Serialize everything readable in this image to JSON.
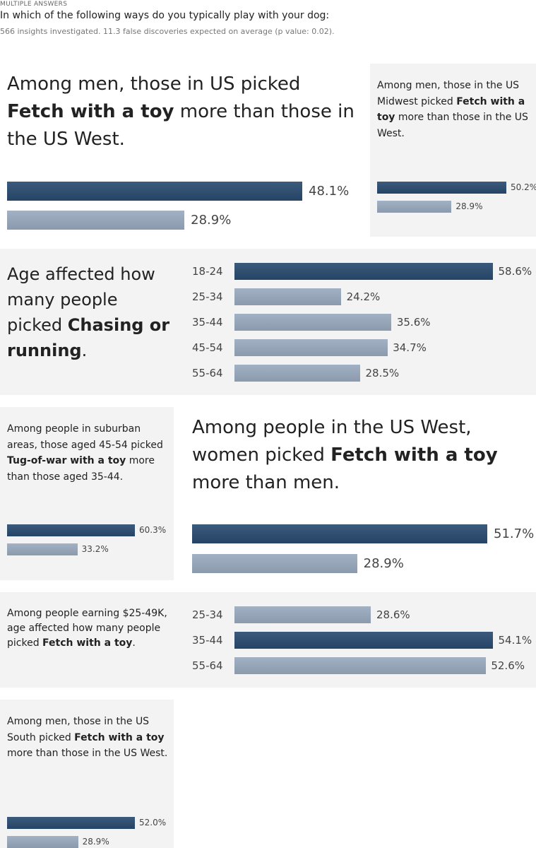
{
  "header": {
    "label": "MULTIPLE ANSWERS",
    "question": "In which of the following ways do you typically play with your dog:",
    "note": "566 insights investigated. 11.3 false discoveries expected on average (p value: 0.02)."
  },
  "chart_data": [
    {
      "type": "bar",
      "title": [
        {
          "text": "Among men, those in US picked ",
          "bold": false
        },
        {
          "text": "Fetch with a toy",
          "bold": true
        },
        {
          "text": " more than those in the US West.",
          "bold": false
        }
      ],
      "values": [
        48.1,
        28.9
      ],
      "value_labels": [
        "48.1%",
        "28.9%"
      ],
      "colors": [
        "#2a4c71",
        "#9aabbf"
      ]
    },
    {
      "type": "bar",
      "title": [
        {
          "text": "Among men, those in the US Midwest picked ",
          "bold": false
        },
        {
          "text": "Fetch with a toy",
          "bold": true
        },
        {
          "text": " more than those in the US West.",
          "bold": false
        }
      ],
      "values": [
        50.2,
        28.9
      ],
      "value_labels": [
        "50.2%",
        "28.9%"
      ],
      "colors": [
        "#2a4c71",
        "#9aabbf"
      ]
    },
    {
      "type": "bar",
      "title": [
        {
          "text": "Age affected how many people picked ",
          "bold": false
        },
        {
          "text": "Chasing or running",
          "bold": true
        },
        {
          "text": ".",
          "bold": false
        }
      ],
      "categories": [
        "18-24",
        "25-34",
        "35-44",
        "45-54",
        "55-64"
      ],
      "values": [
        58.6,
        24.2,
        35.6,
        34.7,
        28.5
      ],
      "value_labels": [
        "58.6%",
        "24.2%",
        "35.6%",
        "34.7%",
        "28.5%"
      ],
      "colors": [
        "#2a4c71",
        "#9aabbf",
        "#9aabbf",
        "#9aabbf",
        "#9aabbf"
      ]
    },
    {
      "type": "bar",
      "title": [
        {
          "text": "Among people in suburban areas, those aged 45-54 picked ",
          "bold": false
        },
        {
          "text": "Tug-of-war with a toy",
          "bold": true
        },
        {
          "text": " more than those aged 35-44.",
          "bold": false
        }
      ],
      "values": [
        60.3,
        33.2
      ],
      "value_labels": [
        "60.3%",
        "33.2%"
      ],
      "colors": [
        "#2a4c71",
        "#9aabbf"
      ]
    },
    {
      "type": "bar",
      "title": [
        {
          "text": "Among people in the US West, women picked ",
          "bold": false
        },
        {
          "text": "Fetch with a toy",
          "bold": true
        },
        {
          "text": " more than men.",
          "bold": false
        }
      ],
      "values": [
        51.7,
        28.9
      ],
      "value_labels": [
        "51.7%",
        "28.9%"
      ],
      "colors": [
        "#2a4c71",
        "#9aabbf"
      ]
    },
    {
      "type": "bar",
      "title": [
        {
          "text": "Among people earning $25-49K, age affected how many people picked ",
          "bold": false
        },
        {
          "text": "Fetch with a toy",
          "bold": true
        },
        {
          "text": ".",
          "bold": false
        }
      ],
      "categories": [
        "25-34",
        "35-44",
        "55-64"
      ],
      "values": [
        28.6,
        54.1,
        52.6
      ],
      "value_labels": [
        "28.6%",
        "54.1%",
        "52.6%"
      ],
      "colors": [
        "#9aabbf",
        "#2a4c71",
        "#9aabbf"
      ]
    },
    {
      "type": "bar",
      "title": [
        {
          "text": "Among men, those in the US South picked ",
          "bold": false
        },
        {
          "text": "Fetch with a toy",
          "bold": true
        },
        {
          "text": " more than those in the US West.",
          "bold": false
        }
      ],
      "values": [
        52.0,
        28.9
      ],
      "value_labels": [
        "52.0%",
        "28.9%"
      ],
      "colors": [
        "#2a4c71",
        "#9aabbf"
      ]
    }
  ]
}
